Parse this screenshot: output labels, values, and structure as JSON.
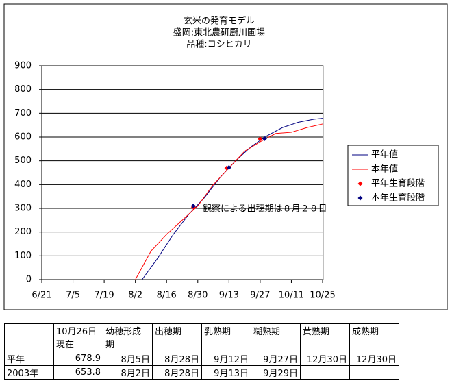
{
  "chart_data": {
    "type": "line",
    "title": [
      "玄米の発育モデル",
      "盛岡:東北農研厨川圃場",
      "品種:コシヒカリ"
    ],
    "xlim": [
      "6/21",
      "10/25"
    ],
    "xticks": [
      "6/21",
      "7/5",
      "7/19",
      "8/2",
      "8/16",
      "8/30",
      "9/13",
      "9/27",
      "10/11",
      "10/25"
    ],
    "ylim": [
      0,
      900
    ],
    "yticks": [
      0,
      100,
      200,
      300,
      400,
      500,
      600,
      700,
      800,
      900
    ],
    "grid": true,
    "series": [
      {
        "name": "平年値",
        "color": "#000080",
        "style": "line",
        "x": [
          "8/5",
          "8/12",
          "8/19",
          "8/26",
          "9/2",
          "9/9",
          "9/16",
          "9/23",
          "9/30",
          "10/7",
          "10/14",
          "10/21",
          "10/25"
        ],
        "values": [
          0,
          90,
          190,
          275,
          345,
          430,
          500,
          560,
          605,
          640,
          662,
          675,
          679
        ]
      },
      {
        "name": "本年値",
        "color": "#ff0000",
        "style": "line",
        "x": [
          "8/2",
          "8/9",
          "8/16",
          "8/23",
          "8/30",
          "9/6",
          "9/13",
          "9/20",
          "9/27",
          "10/4",
          "10/11",
          "10/18",
          "10/25"
        ],
        "values": [
          0,
          120,
          190,
          250,
          310,
          400,
          470,
          540,
          580,
          615,
          620,
          640,
          655
        ]
      },
      {
        "name": "平年生育段階",
        "color": "#ff0000",
        "style": "marker",
        "x": [
          "8/28",
          "9/12",
          "9/27"
        ],
        "values": [
          305,
          470,
          592
        ]
      },
      {
        "name": "本年生育段階",
        "color": "#000080",
        "style": "marker",
        "x": [
          "8/28",
          "9/13",
          "9/29"
        ],
        "values": [
          310,
          472,
          593
        ]
      }
    ],
    "annotation": "観察による出穂期は８月２８日"
  },
  "table": {
    "header": [
      "",
      [
        "10月26日",
        "現在"
      ],
      [
        "幼穂形成",
        "期"
      ],
      "出穂期",
      "乳熟期",
      "糊熟期",
      "黄熟期",
      "成熟期"
    ],
    "rows": [
      [
        "平年",
        678.9,
        "8月5日",
        "8月28日",
        "9月12日",
        "9月27日",
        "12月30日",
        "12月30日"
      ],
      [
        "2003年",
        653.8,
        "8月2日",
        "8月28日",
        "9月13日",
        "9月29日",
        null,
        null
      ]
    ]
  }
}
